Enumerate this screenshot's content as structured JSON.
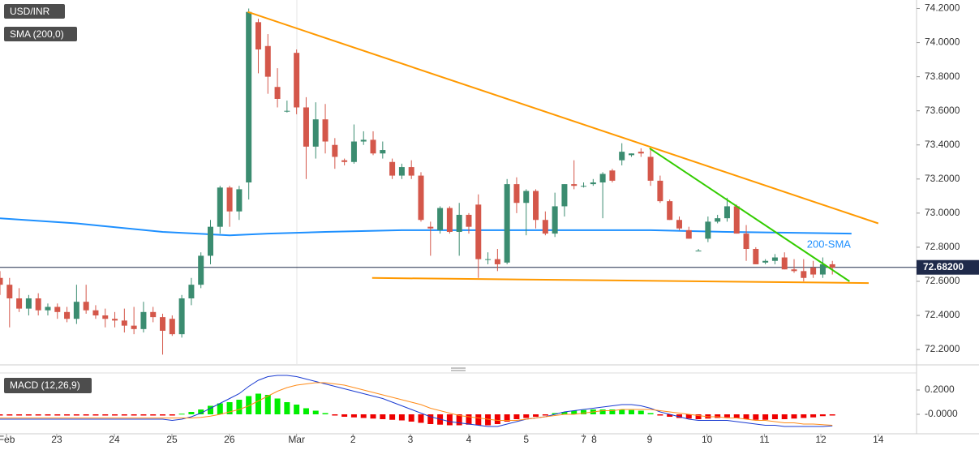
{
  "chart_data": [
    {
      "type": "candlestick",
      "title": "USD/INR",
      "up_color": "#3b8c70",
      "down_color": "#d4574a",
      "x": [
        0,
        1,
        2,
        3,
        4,
        5,
        6,
        7,
        8,
        9,
        10,
        11,
        12,
        13,
        14,
        15,
        16,
        17,
        18,
        19,
        20,
        21,
        22,
        23,
        24,
        25,
        26,
        27,
        28,
        29,
        30,
        31,
        32,
        33,
        34,
        35,
        36,
        37,
        38,
        39,
        40,
        41,
        42,
        43,
        44,
        45,
        46,
        47,
        48,
        49,
        50,
        51,
        52,
        53,
        54,
        55,
        56,
        57,
        58,
        59,
        60,
        61,
        62,
        63,
        64,
        65,
        66,
        67,
        68,
        69,
        70,
        71,
        72,
        73,
        74,
        75,
        76,
        77,
        78,
        79,
        80,
        81,
        82,
        83,
        84,
        85,
        86,
        87
      ],
      "ohlc": [
        [
          72.62,
          72.66,
          72.52,
          72.58
        ],
        [
          72.58,
          72.62,
          72.33,
          72.5
        ],
        [
          72.5,
          72.56,
          72.42,
          72.44
        ],
        [
          72.44,
          72.52,
          72.4,
          72.5
        ],
        [
          72.5,
          72.53,
          72.4,
          72.43
        ],
        [
          72.43,
          72.47,
          72.4,
          72.45
        ],
        [
          72.45,
          72.47,
          72.38,
          72.42
        ],
        [
          72.42,
          72.45,
          72.36,
          72.38
        ],
        [
          72.38,
          72.58,
          72.35,
          72.48
        ],
        [
          72.48,
          72.58,
          72.41,
          72.43
        ],
        [
          72.43,
          72.46,
          72.38,
          72.4
        ],
        [
          72.4,
          72.44,
          72.33,
          72.38
        ],
        [
          72.38,
          72.42,
          72.33,
          72.37
        ],
        [
          72.37,
          72.44,
          72.3,
          72.34
        ],
        [
          72.34,
          72.45,
          72.29,
          72.32
        ],
        [
          72.32,
          72.48,
          72.3,
          72.42
        ],
        [
          72.42,
          72.45,
          72.36,
          72.39
        ],
        [
          72.39,
          72.41,
          72.17,
          72.31
        ],
        [
          72.38,
          72.4,
          72.28,
          72.29
        ],
        [
          72.29,
          72.52,
          72.27,
          72.5
        ],
        [
          72.5,
          72.62,
          72.46,
          72.58
        ],
        [
          72.58,
          72.77,
          72.56,
          72.75
        ],
        [
          72.75,
          72.96,
          72.7,
          72.92
        ],
        [
          72.92,
          73.16,
          72.88,
          73.15
        ],
        [
          73.15,
          73.16,
          72.92,
          73.01
        ],
        [
          73.01,
          73.16,
          72.96,
          73.14
        ],
        [
          73.18,
          74.2,
          73.08,
          74.18
        ],
        [
          74.12,
          74.14,
          73.82,
          73.96
        ],
        [
          73.98,
          74.05,
          73.7,
          73.8
        ],
        [
          73.74,
          73.85,
          73.62,
          73.67
        ],
        [
          73.6,
          73.66,
          73.59,
          73.6
        ],
        [
          73.94,
          73.96,
          73.58,
          73.62
        ],
        [
          73.62,
          73.68,
          73.2,
          73.39
        ],
        [
          73.39,
          73.65,
          73.32,
          73.55
        ],
        [
          73.55,
          73.64,
          73.35,
          73.42
        ],
        [
          73.4,
          73.44,
          73.26,
          73.33
        ],
        [
          73.31,
          73.32,
          73.28,
          73.3
        ],
        [
          73.3,
          73.52,
          73.29,
          73.42
        ],
        [
          73.42,
          73.48,
          73.4,
          73.43
        ],
        [
          73.43,
          73.48,
          73.34,
          73.35
        ],
        [
          73.35,
          73.42,
          73.32,
          73.37
        ],
        [
          73.3,
          73.32,
          73.2,
          73.22
        ],
        [
          73.22,
          73.29,
          73.2,
          73.27
        ],
        [
          73.27,
          73.31,
          73.2,
          73.22
        ],
        [
          73.22,
          73.24,
          72.95,
          72.96
        ],
        [
          72.92,
          72.95,
          72.75,
          72.91
        ],
        [
          72.9,
          73.04,
          72.88,
          73.03
        ],
        [
          73.03,
          73.04,
          72.88,
          72.89
        ],
        [
          72.89,
          73.06,
          72.75,
          72.99
        ],
        [
          72.99,
          73.0,
          72.88,
          72.92
        ],
        [
          73.05,
          73.11,
          72.62,
          72.73
        ],
        [
          72.73,
          72.77,
          72.7,
          72.73
        ],
        [
          72.73,
          72.79,
          72.66,
          72.7
        ],
        [
          72.71,
          73.2,
          72.7,
          73.17
        ],
        [
          73.17,
          73.21,
          73.0,
          73.06
        ],
        [
          73.06,
          73.14,
          72.87,
          73.13
        ],
        [
          73.13,
          73.14,
          72.91,
          72.96
        ],
        [
          72.96,
          73.01,
          72.87,
          72.88
        ],
        [
          72.88,
          73.12,
          72.86,
          73.04
        ],
        [
          73.04,
          73.17,
          72.98,
          73.17
        ],
        [
          73.17,
          73.31,
          73.14,
          73.16
        ],
        [
          73.16,
          73.18,
          73.15,
          73.16
        ],
        [
          73.17,
          73.2,
          73.16,
          73.18
        ],
        [
          73.18,
          73.24,
          72.97,
          73.23
        ],
        [
          73.25,
          73.26,
          73.18,
          73.19
        ],
        [
          73.31,
          73.41,
          73.28,
          73.36
        ],
        [
          73.34,
          73.35,
          73.33,
          73.35
        ],
        [
          73.36,
          73.38,
          73.33,
          73.35
        ],
        [
          73.33,
          73.38,
          73.16,
          73.19
        ],
        [
          73.19,
          73.22,
          73.06,
          73.07
        ],
        [
          73.07,
          73.08,
          72.96,
          72.96
        ],
        [
          72.96,
          72.98,
          72.9,
          72.91
        ],
        [
          72.9,
          72.92,
          72.85,
          72.85
        ],
        [
          72.78,
          72.79,
          72.78,
          72.78
        ],
        [
          72.85,
          72.98,
          72.83,
          72.95
        ],
        [
          72.95,
          72.99,
          72.94,
          72.97
        ],
        [
          72.97,
          73.09,
          72.95,
          73.04
        ],
        [
          73.04,
          73.05,
          72.88,
          72.88
        ],
        [
          72.88,
          72.93,
          72.72,
          72.79
        ],
        [
          72.79,
          72.8,
          72.7,
          72.7
        ],
        [
          72.71,
          72.73,
          72.7,
          72.72
        ],
        [
          72.72,
          72.76,
          72.7,
          72.74
        ],
        [
          72.74,
          72.77,
          72.67,
          72.67
        ],
        [
          72.67,
          72.73,
          72.65,
          72.66
        ],
        [
          72.66,
          72.73,
          72.6,
          72.62
        ],
        [
          72.68,
          72.72,
          72.62,
          72.64
        ],
        [
          72.64,
          72.74,
          72.62,
          72.7
        ],
        [
          72.7,
          72.72,
          72.64,
          72.68
        ]
      ],
      "sma": {
        "name": "SMA (200,0)",
        "label": "200-SMA",
        "color": "#1e90ff",
        "x": [
          0,
          8,
          17,
          24,
          28,
          34,
          42,
          59,
          68,
          76,
          89
        ],
        "values": [
          72.97,
          72.94,
          72.89,
          72.87,
          72.88,
          72.89,
          72.9,
          72.9,
          72.9,
          72.89,
          72.88
        ]
      },
      "lines": [
        {
          "color": "#ff9900",
          "x": [
            25.9,
            91.8
          ],
          "values": [
            74.18,
            72.94
          ]
        },
        {
          "color": "#33cc00",
          "x": [
            67.9,
            88.8
          ],
          "values": [
            73.38,
            72.6
          ]
        },
        {
          "color": "#ff9900",
          "x": [
            38.9,
            90.8
          ],
          "values": [
            72.62,
            72.59
          ]
        }
      ],
      "last": {
        "value": 72.682,
        "label": "72.68200"
      },
      "xlim": [
        0,
        95.8
      ],
      "xticks": [
        {
          "value": 0.68,
          "label": "Feb"
        },
        {
          "value": 5.93,
          "label": "23"
        },
        {
          "value": 11.95,
          "label": "24"
        },
        {
          "value": 17.97,
          "label": "25"
        },
        {
          "value": 23.98,
          "label": "26"
        },
        {
          "value": 31.0,
          "label": "Mar"
        },
        {
          "value": 36.9,
          "label": "2"
        },
        {
          "value": 42.9,
          "label": "3"
        },
        {
          "value": 49.0,
          "label": "4"
        },
        {
          "value": 55.0,
          "label": "5"
        },
        {
          "value": 61.0,
          "label": "7"
        },
        {
          "value": 62.1,
          "label": "8"
        },
        {
          "value": 67.9,
          "label": "9"
        },
        {
          "value": 73.9,
          "label": "10"
        },
        {
          "value": 79.9,
          "label": "11"
        },
        {
          "value": 85.8,
          "label": "12"
        },
        {
          "value": 91.8,
          "label": "14"
        }
      ],
      "ylim": [
        72.11,
        74.25
      ],
      "yticks": [
        {
          "value": 72.2,
          "label": "72.2000"
        },
        {
          "value": 72.4,
          "label": "72.4000"
        },
        {
          "value": 72.6,
          "label": "72.6000"
        },
        {
          "value": 72.8,
          "label": "72.8000"
        },
        {
          "value": 73.0,
          "label": "73.0000"
        },
        {
          "value": 73.2,
          "label": "73.2000"
        },
        {
          "value": 73.4,
          "label": "73.4000"
        },
        {
          "value": 73.6,
          "label": "73.6000"
        },
        {
          "value": 73.8,
          "label": "73.8000"
        },
        {
          "value": 74.0,
          "label": "74.0000"
        },
        {
          "value": 74.2,
          "label": "74.2000"
        }
      ]
    },
    {
      "type": "macd",
      "title": "MACD (12,26,9)",
      "histogram": {
        "up_color": "#00ee00",
        "down_color": "#ee0000",
        "values": [
          -0.01,
          -0.01,
          -0.01,
          -0.01,
          -0.01,
          -0.01,
          -0.01,
          -0.01,
          -0.01,
          -0.01,
          -0.01,
          -0.01,
          -0.01,
          -0.01,
          -0.01,
          -0.01,
          -0.01,
          -0.01,
          -0.01,
          0.005,
          0.02,
          0.04,
          0.07,
          0.09,
          0.1,
          0.12,
          0.15,
          0.17,
          0.16,
          0.13,
          0.1,
          0.08,
          0.05,
          0.03,
          0.01,
          -0.01,
          -0.02,
          -0.025,
          -0.03,
          -0.035,
          -0.04,
          -0.045,
          -0.05,
          -0.06,
          -0.07,
          -0.08,
          -0.085,
          -0.09,
          -0.09,
          -0.085,
          -0.09,
          -0.09,
          -0.08,
          -0.06,
          -0.04,
          -0.03,
          -0.02,
          -0.01,
          0.01,
          0.02,
          0.03,
          0.035,
          0.04,
          0.04,
          0.04,
          0.04,
          0.035,
          0.03,
          0.01,
          -0.01,
          -0.02,
          -0.03,
          -0.035,
          -0.04,
          -0.035,
          -0.03,
          -0.025,
          -0.03,
          -0.04,
          -0.045,
          -0.045,
          -0.04,
          -0.04,
          -0.035,
          -0.03,
          -0.025,
          -0.015,
          -0.01
        ]
      },
      "series": [
        {
          "color": "#1a3bd1",
          "values": [
            -0.04,
            -0.04,
            -0.04,
            -0.04,
            -0.04,
            -0.04,
            -0.04,
            -0.04,
            -0.04,
            -0.04,
            -0.04,
            -0.04,
            -0.04,
            -0.04,
            -0.04,
            -0.04,
            -0.04,
            -0.04,
            -0.05,
            -0.04,
            -0.02,
            0.01,
            0.05,
            0.09,
            0.13,
            0.17,
            0.23,
            0.28,
            0.31,
            0.32,
            0.32,
            0.31,
            0.29,
            0.27,
            0.25,
            0.23,
            0.21,
            0.19,
            0.17,
            0.15,
            0.13,
            0.1,
            0.07,
            0.04,
            0.01,
            -0.02,
            -0.04,
            -0.06,
            -0.07,
            -0.08,
            -0.09,
            -0.1,
            -0.1,
            -0.08,
            -0.06,
            -0.04,
            -0.03,
            -0.02,
            0,
            0.02,
            0.03,
            0.04,
            0.05,
            0.06,
            0.07,
            0.08,
            0.08,
            0.07,
            0.05,
            0.02,
            0,
            -0.02,
            -0.04,
            -0.05,
            -0.05,
            -0.05,
            -0.05,
            -0.06,
            -0.07,
            -0.08,
            -0.09,
            -0.09,
            -0.1,
            -0.1,
            -0.1,
            -0.1,
            -0.1,
            -0.095
          ]
        },
        {
          "color": "#ff8c1a",
          "values": [
            -0.03,
            -0.03,
            -0.03,
            -0.03,
            -0.03,
            -0.03,
            -0.03,
            -0.03,
            -0.03,
            -0.03,
            -0.03,
            -0.03,
            -0.03,
            -0.03,
            -0.03,
            -0.03,
            -0.03,
            -0.03,
            -0.03,
            -0.03,
            -0.03,
            -0.025,
            -0.015,
            0,
            0.02,
            0.04,
            0.07,
            0.11,
            0.15,
            0.19,
            0.22,
            0.24,
            0.25,
            0.26,
            0.26,
            0.25,
            0.24,
            0.22,
            0.2,
            0.18,
            0.16,
            0.14,
            0.12,
            0.1,
            0.08,
            0.05,
            0.03,
            0.01,
            -0.01,
            -0.02,
            -0.03,
            -0.04,
            -0.05,
            -0.05,
            -0.05,
            -0.04,
            -0.03,
            -0.02,
            -0.01,
            0,
            0,
            0.01,
            0.02,
            0.03,
            0.03,
            0.04,
            0.04,
            0.04,
            0.04,
            0.03,
            0.02,
            0.01,
            0,
            -0.01,
            -0.02,
            -0.02,
            -0.03,
            -0.03,
            -0.04,
            -0.05,
            -0.05,
            -0.06,
            -0.07,
            -0.07,
            -0.08,
            -0.08,
            -0.085,
            -0.09
          ]
        }
      ],
      "ylim": [
        -0.16,
        0.34
      ],
      "yticks": [
        {
          "value": 0,
          "label": "-0.0000"
        },
        {
          "value": 0.2,
          "label": "0.2000"
        }
      ]
    }
  ]
}
